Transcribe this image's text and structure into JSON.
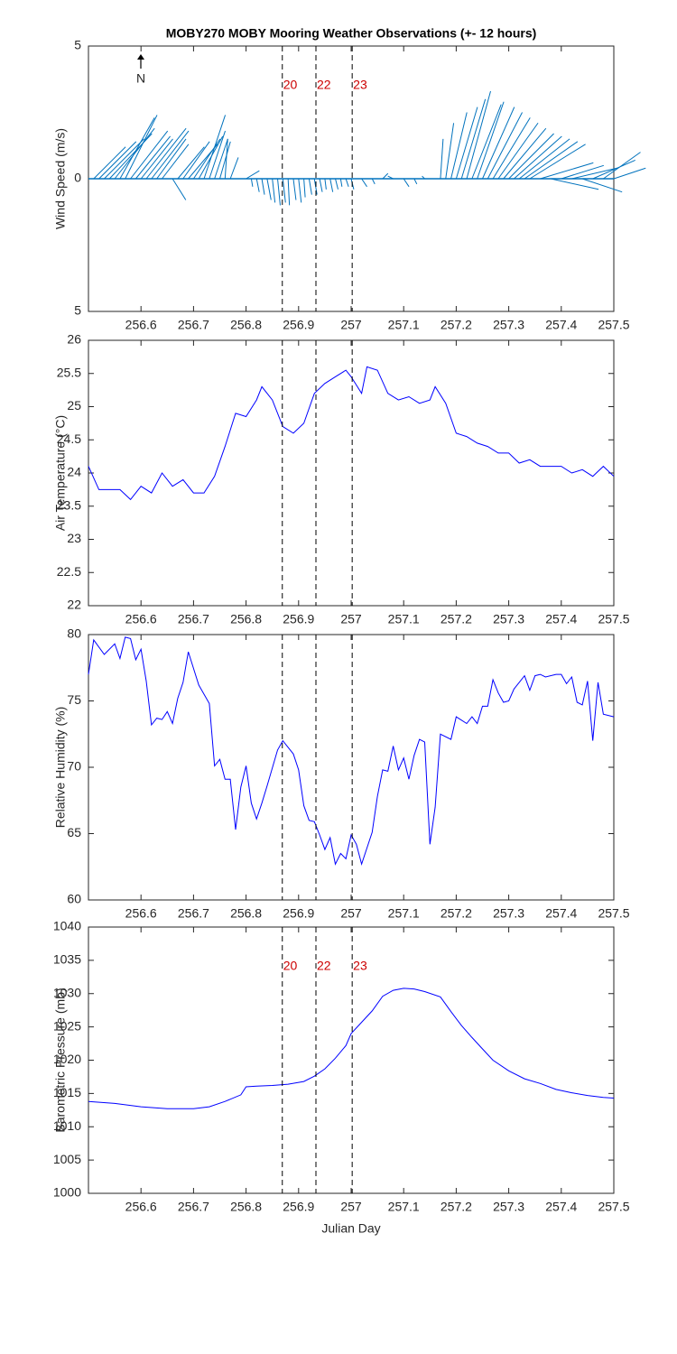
{
  "chart_data": [
    {
      "type": "quiver",
      "title": "MOBY270 MOBY Mooring Weather Observations (+- 12 hours)",
      "ylabel": "Wind Speed (m/s)",
      "annotation": "N",
      "color": "#0072bd",
      "xlim": [
        256.5,
        257.5
      ],
      "xticks": [
        256.6,
        256.7,
        256.8,
        256.9,
        257,
        257.1,
        257.2,
        257.3,
        257.4,
        257.5
      ],
      "ylim": [
        -5,
        5
      ],
      "yticks": [
        {
          "value": -5,
          "label": "5"
        },
        0,
        5
      ],
      "vlines": [
        256.869,
        256.933,
        257.002
      ],
      "vline_labels": [
        "20",
        "22",
        "23"
      ],
      "x": [
        256.51,
        256.52,
        256.53,
        256.54,
        256.55,
        256.56,
        256.57,
        256.58,
        256.59,
        256.6,
        256.61,
        256.62,
        256.63,
        256.64,
        256.66,
        256.67,
        256.68,
        256.69,
        256.7,
        256.71,
        256.72,
        256.73,
        256.74,
        256.75,
        256.76,
        256.77,
        256.8,
        256.81,
        256.82,
        256.83,
        256.84,
        256.85,
        256.86,
        256.87,
        256.88,
        256.89,
        256.9,
        256.91,
        256.92,
        256.93,
        256.94,
        256.95,
        256.96,
        256.97,
        256.98,
        256.99,
        257.0,
        257.02,
        257.04,
        257.06,
        257.08,
        257.1,
        257.12,
        257.14,
        257.17,
        257.18,
        257.19,
        257.2,
        257.21,
        257.22,
        257.23,
        257.24,
        257.25,
        257.26,
        257.27,
        257.28,
        257.29,
        257.3,
        257.31,
        257.32,
        257.33,
        257.34,
        257.36,
        257.38,
        257.4,
        257.42,
        257.44,
        257.46,
        257.48,
        257.5
      ],
      "u": [
        1.2,
        1.4,
        1.5,
        1.6,
        1.5,
        1.3,
        1.2,
        1.4,
        1.3,
        1.2,
        1.5,
        1.4,
        1.1,
        1.0,
        0.5,
        1.0,
        1.0,
        1.1,
        1.0,
        0.9,
        0.8,
        0.6,
        0.5,
        0.4,
        0.1,
        0.3,
        0.5,
        0.05,
        0.1,
        0.1,
        0.15,
        0.1,
        0.1,
        0.1,
        0.05,
        0.1,
        0.1,
        0.05,
        0.1,
        0.1,
        0.1,
        0.05,
        0.1,
        0.1,
        0.05,
        0.1,
        0.1,
        0.2,
        0.1,
        0.2,
        -0.2,
        0.2,
        0.1,
        -0.1,
        0.1,
        0.3,
        0.6,
        0.8,
        0.9,
        0.9,
        1.1,
        1.0,
        1.2,
        1.3,
        1.4,
        1.5,
        1.6,
        1.7,
        1.8,
        1.9,
        2.0,
        2.1,
        2.0,
        1.8,
        1.6,
        1.7,
        1.5,
        1.6,
        1.4,
        1.2
      ],
      "v": [
        1.2,
        1.4,
        1.5,
        1.7,
        1.9,
        2.3,
        2.4,
        1.8,
        1.6,
        1.5,
        1.9,
        1.8,
        1.5,
        1.3,
        -0.8,
        1.2,
        1.4,
        1.3,
        1.5,
        1.6,
        2.4,
        1.8,
        1.5,
        1.4,
        1.5,
        0.8,
        0.3,
        -0.3,
        -0.5,
        -0.6,
        -0.8,
        -0.9,
        -1.0,
        -0.9,
        -1.0,
        -0.8,
        -0.9,
        -0.7,
        -0.6,
        -0.6,
        -0.5,
        -0.4,
        -0.5,
        -0.4,
        -0.3,
        -0.3,
        -0.4,
        -0.3,
        -0.2,
        0.2,
        0.1,
        -0.3,
        -0.2,
        0.1,
        1.5,
        2.1,
        2.5,
        2.7,
        3.0,
        3.3,
        2.8,
        2.9,
        2.7,
        2.5,
        2.3,
        2.1,
        1.9,
        1.7,
        1.6,
        1.5,
        1.4,
        1.3,
        0.6,
        -0.4,
        0.5,
        0.4,
        -0.5,
        0.7,
        1.0,
        0.4
      ]
    },
    {
      "type": "line",
      "ylabel": "Air Temperature (°C)",
      "color": "#0000ff",
      "xlim": [
        256.5,
        257.5
      ],
      "xticks": [
        256.6,
        256.7,
        256.8,
        256.9,
        257,
        257.1,
        257.2,
        257.3,
        257.4,
        257.5
      ],
      "ylim": [
        22,
        26
      ],
      "yticks": [
        22,
        22.5,
        23,
        23.5,
        24,
        24.5,
        25,
        25.5,
        26
      ],
      "vlines": [
        256.869,
        256.933,
        257.002
      ],
      "x": [
        256.5,
        256.52,
        256.54,
        256.56,
        256.58,
        256.6,
        256.62,
        256.64,
        256.66,
        256.68,
        256.7,
        256.72,
        256.74,
        256.76,
        256.78,
        256.8,
        256.82,
        256.83,
        256.85,
        256.87,
        256.89,
        256.91,
        256.93,
        256.95,
        256.97,
        256.99,
        257.0,
        257.02,
        257.03,
        257.05,
        257.07,
        257.09,
        257.11,
        257.13,
        257.15,
        257.16,
        257.18,
        257.2,
        257.22,
        257.24,
        257.26,
        257.28,
        257.3,
        257.32,
        257.34,
        257.36,
        257.38,
        257.4,
        257.42,
        257.44,
        257.46,
        257.48,
        257.5
      ],
      "values": [
        24.1,
        23.75,
        23.75,
        23.75,
        23.6,
        23.8,
        23.7,
        24.0,
        23.8,
        23.9,
        23.7,
        23.7,
        23.95,
        24.4,
        24.9,
        24.85,
        25.1,
        25.3,
        25.1,
        24.7,
        24.6,
        24.75,
        25.2,
        25.35,
        25.45,
        25.55,
        25.45,
        25.2,
        25.6,
        25.55,
        25.2,
        25.1,
        25.15,
        25.05,
        25.1,
        25.3,
        25.05,
        24.6,
        24.55,
        24.45,
        24.4,
        24.3,
        24.3,
        24.15,
        24.2,
        24.1,
        24.1,
        24.1,
        24.0,
        24.05,
        23.95,
        24.1,
        23.95
      ]
    },
    {
      "type": "line",
      "ylabel": "Relative Humidity (%)",
      "color": "#0000ff",
      "xlim": [
        256.5,
        257.5
      ],
      "xticks": [
        256.6,
        256.7,
        256.8,
        256.9,
        257,
        257.1,
        257.2,
        257.3,
        257.4,
        257.5
      ],
      "ylim": [
        60,
        80
      ],
      "yticks": [
        60,
        65,
        70,
        75,
        80
      ],
      "vlines": [
        256.869,
        256.933,
        257.002
      ],
      "x": [
        256.5,
        256.51,
        256.53,
        256.55,
        256.56,
        256.57,
        256.58,
        256.59,
        256.6,
        256.61,
        256.62,
        256.63,
        256.64,
        256.65,
        256.66,
        256.67,
        256.68,
        256.69,
        256.71,
        256.73,
        256.74,
        256.75,
        256.76,
        256.77,
        256.78,
        256.79,
        256.8,
        256.81,
        256.82,
        256.83,
        256.84,
        256.86,
        256.87,
        256.89,
        256.9,
        256.91,
        256.92,
        256.93,
        256.94,
        256.95,
        256.96,
        256.97,
        256.98,
        256.99,
        257.0,
        257.01,
        257.02,
        257.04,
        257.05,
        257.06,
        257.07,
        257.08,
        257.09,
        257.1,
        257.11,
        257.12,
        257.13,
        257.14,
        257.15,
        257.16,
        257.17,
        257.19,
        257.2,
        257.22,
        257.23,
        257.24,
        257.25,
        257.26,
        257.27,
        257.28,
        257.29,
        257.3,
        257.31,
        257.33,
        257.34,
        257.35,
        257.36,
        257.37,
        257.39,
        257.4,
        257.41,
        257.42,
        257.43,
        257.44,
        257.45,
        257.46,
        257.47,
        257.48,
        257.5
      ],
      "values": [
        77,
        79.6,
        78.5,
        79.3,
        78.2,
        79.8,
        79.7,
        78.1,
        78.9,
        76.5,
        73.2,
        73.7,
        73.6,
        74.2,
        73.3,
        75.2,
        76.4,
        78.7,
        76.2,
        74.8,
        70.1,
        70.6,
        69.1,
        69.1,
        65.3,
        68.5,
        70.1,
        67.3,
        66.1,
        67.3,
        68.6,
        71.3,
        72.0,
        71,
        69.8,
        67.1,
        66.0,
        65.9,
        64.9,
        63.8,
        64.7,
        62.7,
        63.5,
        63.1,
        64.9,
        64.2,
        62.7,
        65.1,
        67.8,
        69.8,
        69.7,
        71.6,
        69.8,
        70.7,
        69.1,
        70.9,
        72.1,
        71.9,
        64.2,
        67.0,
        72.5,
        72.1,
        73.8,
        73.3,
        73.8,
        73.3,
        74.6,
        74.6,
        76.6,
        75.6,
        74.9,
        75.0,
        75.9,
        76.9,
        75.8,
        76.9,
        77.0,
        76.8,
        77.0,
        77.0,
        76.3,
        76.8,
        74.9,
        74.7,
        76.5,
        72.0,
        76.4,
        74.0,
        73.8
      ]
    },
    {
      "type": "line",
      "ylabel": "Barometric Pressure (mb)",
      "xlabel": "Julian Day",
      "color": "#0000ff",
      "xlim": [
        256.5,
        257.5
      ],
      "xticks": [
        256.6,
        256.7,
        256.8,
        256.9,
        257,
        257.1,
        257.2,
        257.3,
        257.4,
        257.5
      ],
      "ylim": [
        1000,
        1040
      ],
      "yticks": [
        1000,
        1005,
        1010,
        1015,
        1020,
        1025,
        1030,
        1035,
        1040
      ],
      "vlines": [
        256.869,
        256.933,
        257.002
      ],
      "vline_labels": [
        "20",
        "22",
        "23"
      ],
      "x": [
        256.5,
        256.55,
        256.6,
        256.65,
        256.7,
        256.73,
        256.76,
        256.79,
        256.8,
        256.82,
        256.85,
        256.88,
        256.91,
        256.93,
        256.95,
        256.97,
        256.99,
        257.0,
        257.02,
        257.04,
        257.06,
        257.08,
        257.1,
        257.12,
        257.14,
        257.17,
        257.19,
        257.21,
        257.23,
        257.25,
        257.27,
        257.3,
        257.33,
        257.36,
        257.39,
        257.42,
        257.45,
        257.48,
        257.5
      ],
      "values": [
        1013.8,
        1013.5,
        1013.0,
        1012.7,
        1012.7,
        1013.0,
        1013.8,
        1014.8,
        1016.0,
        1016.1,
        1016.2,
        1016.4,
        1016.8,
        1017.6,
        1018.7,
        1020.3,
        1022.2,
        1024.0,
        1025.7,
        1027.4,
        1029.6,
        1030.5,
        1030.8,
        1030.7,
        1030.3,
        1029.5,
        1027.3,
        1025.2,
        1023.4,
        1021.7,
        1020.0,
        1018.4,
        1017.2,
        1016.5,
        1015.6,
        1015.1,
        1014.7,
        1014.4,
        1014.3
      ]
    }
  ]
}
